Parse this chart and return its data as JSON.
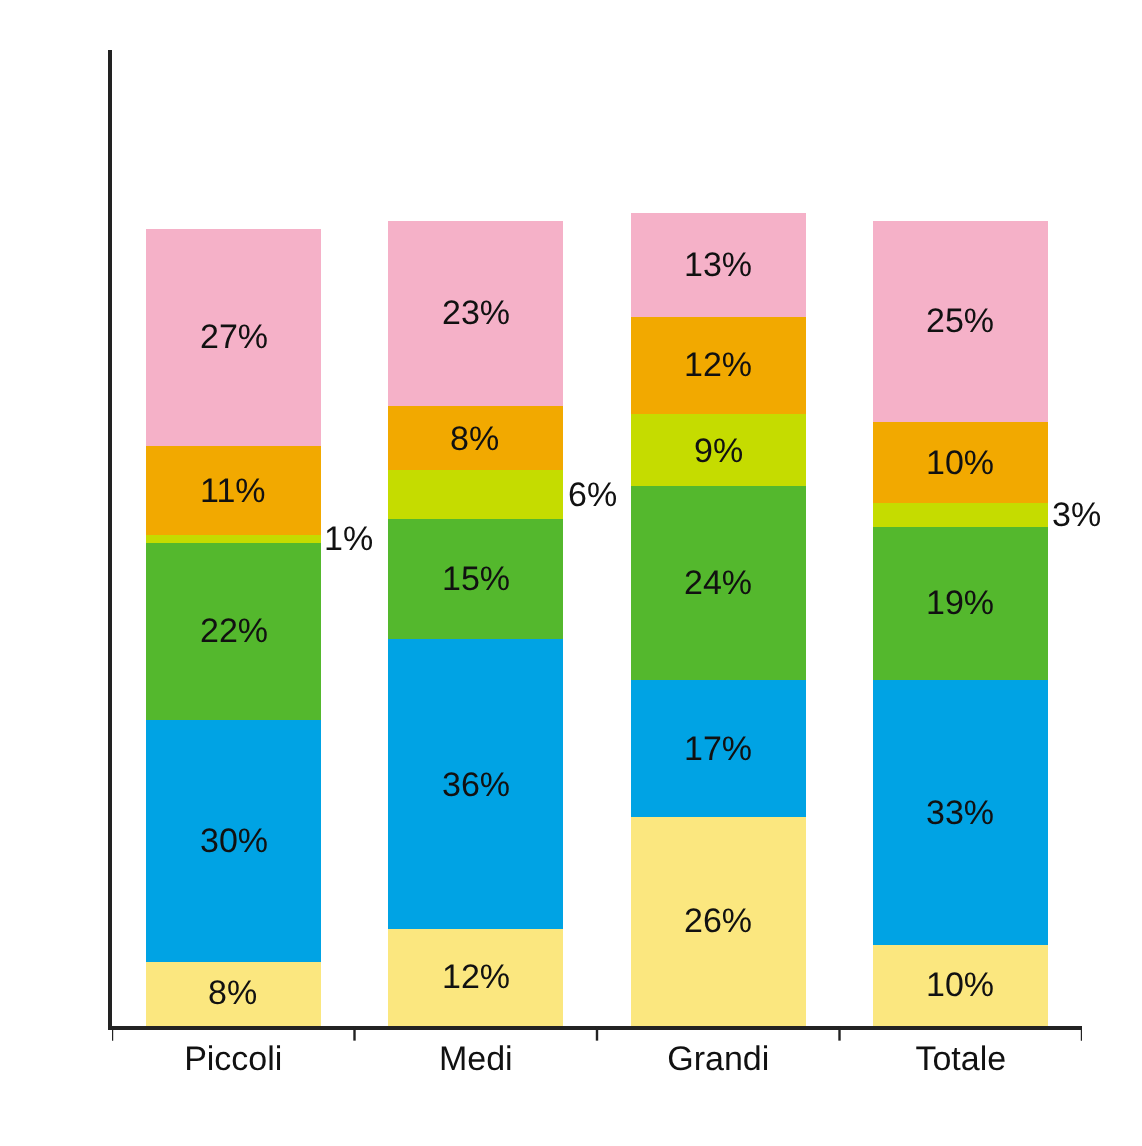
{
  "chart_data": {
    "type": "bar",
    "stacked": true,
    "categories": [
      "Piccoli",
      "Medi",
      "Grandi",
      "Totale"
    ],
    "series": [
      {
        "color": "#fbe77f",
        "values": [
          8,
          12,
          26,
          10
        ],
        "value_labels": [
          "8%",
          "12%",
          "26%",
          "10%"
        ]
      },
      {
        "color": "#00a3e4",
        "values": [
          30,
          36,
          17,
          33
        ],
        "value_labels": [
          "30%",
          "36%",
          "17%",
          "33%"
        ]
      },
      {
        "color": "#54b82d",
        "values": [
          22,
          15,
          24,
          19
        ],
        "value_labels": [
          "22%",
          "15%",
          "24%",
          "19%"
        ]
      },
      {
        "color": "#c5dc00",
        "values": [
          1,
          6,
          9,
          3
        ],
        "value_labels": [
          "1%",
          "6%",
          "9%",
          "3%"
        ]
      },
      {
        "color": "#f2a900",
        "values": [
          11,
          8,
          12,
          10
        ],
        "value_labels": [
          "11%",
          "8%",
          "12%",
          "10%"
        ]
      },
      {
        "color": "#f5b1c8",
        "values": [
          27,
          23,
          13,
          25
        ],
        "value_labels": [
          "27%",
          "23%",
          "13%",
          "25%"
        ]
      }
    ],
    "tick_labels": "x"
  }
}
